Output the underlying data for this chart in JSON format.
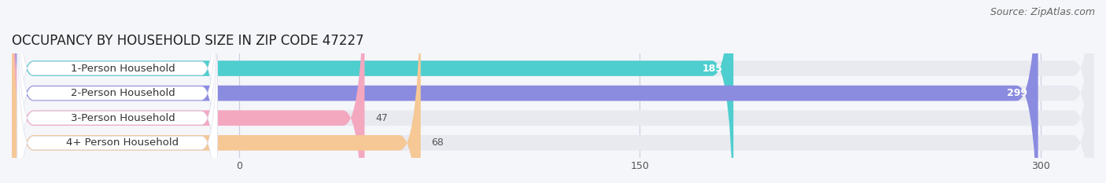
{
  "title": "OCCUPANCY BY HOUSEHOLD SIZE IN ZIP CODE 47227",
  "source_text": "Source: ZipAtlas.com",
  "categories": [
    "1-Person Household",
    "2-Person Household",
    "3-Person Household",
    "4+ Person Household"
  ],
  "values": [
    185,
    299,
    47,
    68
  ],
  "bar_colors": [
    "#4ecece",
    "#8b8be0",
    "#f4a8c0",
    "#f5c896"
  ],
  "background_color": "#f5f6fa",
  "bar_bg_color": "#e8eaf0",
  "label_bg_color": "#ffffff",
  "xlim_min": -85,
  "xlim_max": 320,
  "xticks": [
    0,
    150,
    300
  ],
  "bar_height": 0.62,
  "title_fontsize": 12,
  "label_fontsize": 9.5,
  "value_fontsize": 9,
  "source_fontsize": 9,
  "rounding_size": 8
}
